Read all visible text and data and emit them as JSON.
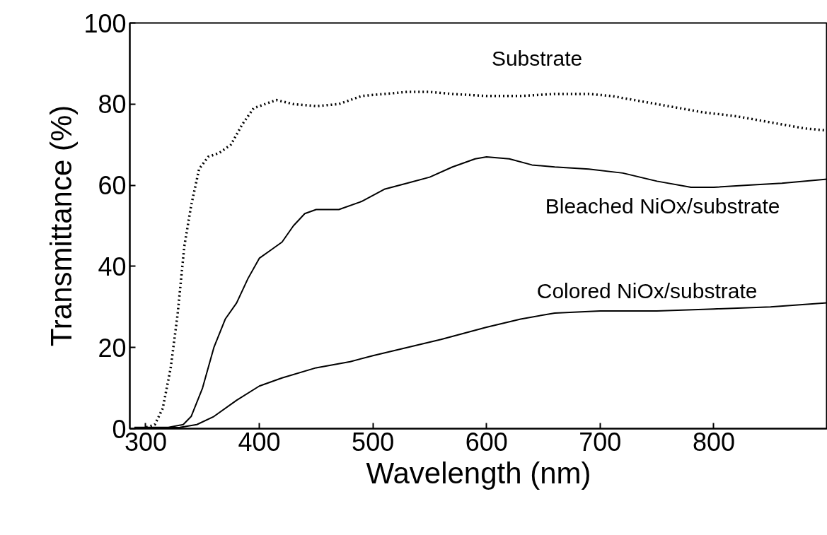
{
  "chart_data": {
    "type": "line",
    "xlabel": "Wavelength (nm)",
    "ylabel": "Transmittance (%)",
    "xlim": [
      286,
      900
    ],
    "ylim": [
      0,
      100
    ],
    "xticks": [
      300,
      400,
      500,
      600,
      700,
      800
    ],
    "yticks": [
      0,
      20,
      40,
      60,
      80,
      100
    ],
    "grid": false,
    "legend": false,
    "marker": "none",
    "series": [
      {
        "name": "Substrate",
        "color": "#000000",
        "line_style": "dotted",
        "x": [
          297,
          308,
          315,
          322,
          328,
          334,
          340,
          347,
          355,
          365,
          375,
          385,
          395,
          405,
          415,
          430,
          450,
          470,
          490,
          510,
          530,
          550,
          570,
          600,
          630,
          660,
          690,
          710,
          730,
          760,
          790,
          820,
          840,
          860,
          880,
          900
        ],
        "values": [
          0,
          1,
          5,
          15,
          28,
          45,
          55,
          64,
          67,
          68,
          70,
          75,
          79,
          80,
          81,
          80,
          79.5,
          80,
          82,
          82.5,
          83,
          83,
          82.5,
          82,
          82,
          82.5,
          82.5,
          82,
          81,
          79.5,
          78,
          77,
          76,
          75,
          74,
          73.5
        ]
      },
      {
        "name": "Bleached NiOx/substrate",
        "color": "#000000",
        "line_style": "solid",
        "x": [
          290,
          320,
          333,
          340,
          350,
          360,
          370,
          380,
          390,
          400,
          410,
          420,
          430,
          440,
          450,
          470,
          490,
          510,
          530,
          550,
          570,
          590,
          600,
          620,
          640,
          660,
          690,
          720,
          750,
          780,
          800,
          830,
          860,
          900
        ],
        "values": [
          0.3,
          0.3,
          1,
          3,
          10,
          20,
          27,
          31,
          37,
          42,
          44,
          46,
          50,
          53,
          54,
          54,
          56,
          59,
          60.5,
          62,
          64.5,
          66.5,
          67,
          66.5,
          65,
          64.5,
          64,
          63,
          61,
          59.5,
          59.5,
          60,
          60.5,
          61.5
        ]
      },
      {
        "name": "Colored NiOx/substrate",
        "color": "#000000",
        "line_style": "solid",
        "x": [
          290,
          330,
          345,
          360,
          380,
          400,
          420,
          450,
          480,
          500,
          530,
          560,
          600,
          630,
          660,
          700,
          750,
          800,
          850,
          900
        ],
        "values": [
          0,
          0.3,
          1,
          3,
          7,
          10.5,
          12.5,
          15,
          16.5,
          18,
          20,
          22,
          25,
          27,
          28.5,
          29,
          29,
          29.5,
          30,
          31
        ]
      }
    ]
  }
}
